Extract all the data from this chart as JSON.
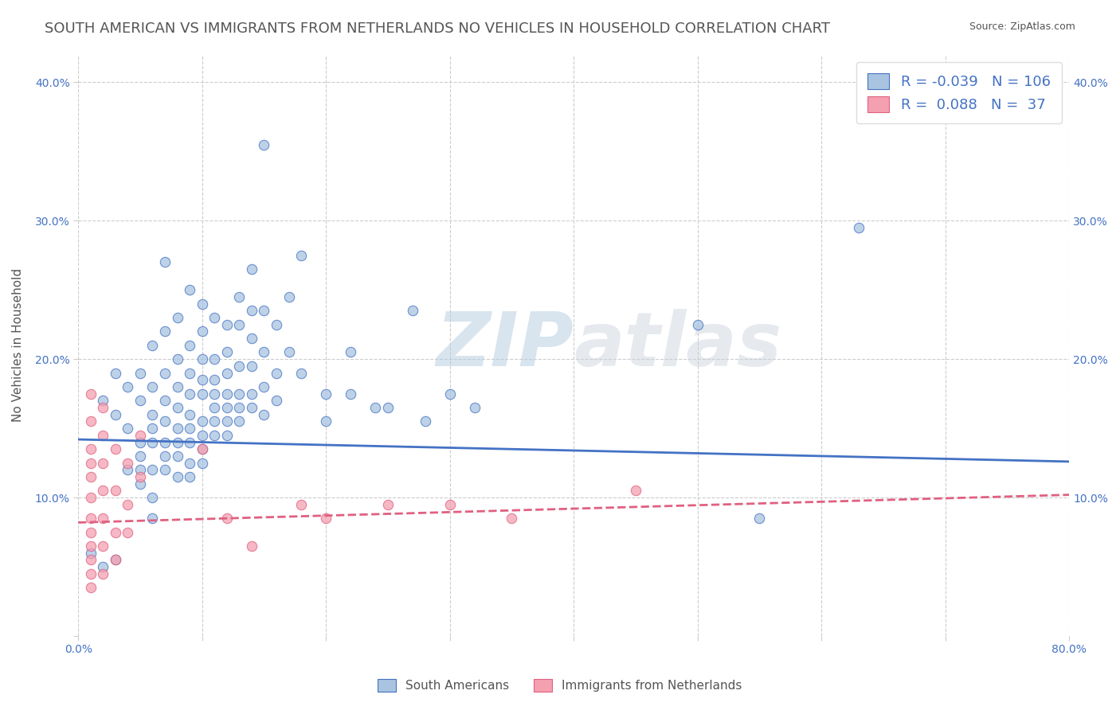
{
  "title": "SOUTH AMERICAN VS IMMIGRANTS FROM NETHERLANDS NO VEHICLES IN HOUSEHOLD CORRELATION CHART",
  "source": "Source: ZipAtlas.com",
  "ylabel": "No Vehicles in Household",
  "xlabel": "",
  "xlim": [
    0.0,
    0.8
  ],
  "ylim": [
    0.0,
    0.42
  ],
  "xticks": [
    0.0,
    0.1,
    0.2,
    0.3,
    0.4,
    0.5,
    0.6,
    0.7,
    0.8
  ],
  "xticklabels": [
    "0.0%",
    "",
    "",
    "",
    "",
    "",
    "",
    "",
    "80.0%"
  ],
  "yticks": [
    0.0,
    0.1,
    0.2,
    0.3,
    0.4
  ],
  "yticklabels_left": [
    "",
    "10.0%",
    "20.0%",
    "30.0%",
    "40.0%"
  ],
  "yticklabels_right": [
    "",
    "10.0%",
    "20.0%",
    "30.0%",
    "40.0%"
  ],
  "r_blue": -0.039,
  "n_blue": 106,
  "r_pink": 0.088,
  "n_pink": 37,
  "blue_color": "#a8c4e0",
  "pink_color": "#f4a0b0",
  "blue_line_color": "#4472c4",
  "pink_line_color": "#e06080",
  "watermark_zip": "ZIP",
  "watermark_atlas": "atlas",
  "blue_scatter": [
    [
      0.02,
      0.17
    ],
    [
      0.03,
      0.16
    ],
    [
      0.03,
      0.19
    ],
    [
      0.04,
      0.18
    ],
    [
      0.04,
      0.15
    ],
    [
      0.04,
      0.12
    ],
    [
      0.05,
      0.19
    ],
    [
      0.05,
      0.17
    ],
    [
      0.05,
      0.14
    ],
    [
      0.05,
      0.12
    ],
    [
      0.05,
      0.11
    ],
    [
      0.05,
      0.13
    ],
    [
      0.06,
      0.21
    ],
    [
      0.06,
      0.18
    ],
    [
      0.06,
      0.16
    ],
    [
      0.06,
      0.15
    ],
    [
      0.06,
      0.14
    ],
    [
      0.06,
      0.12
    ],
    [
      0.06,
      0.1
    ],
    [
      0.06,
      0.085
    ],
    [
      0.07,
      0.27
    ],
    [
      0.07,
      0.22
    ],
    [
      0.07,
      0.19
    ],
    [
      0.07,
      0.17
    ],
    [
      0.07,
      0.155
    ],
    [
      0.07,
      0.14
    ],
    [
      0.07,
      0.13
    ],
    [
      0.07,
      0.12
    ],
    [
      0.08,
      0.23
    ],
    [
      0.08,
      0.2
    ],
    [
      0.08,
      0.18
    ],
    [
      0.08,
      0.165
    ],
    [
      0.08,
      0.15
    ],
    [
      0.08,
      0.14
    ],
    [
      0.08,
      0.13
    ],
    [
      0.08,
      0.115
    ],
    [
      0.09,
      0.25
    ],
    [
      0.09,
      0.21
    ],
    [
      0.09,
      0.19
    ],
    [
      0.09,
      0.175
    ],
    [
      0.09,
      0.16
    ],
    [
      0.09,
      0.15
    ],
    [
      0.09,
      0.14
    ],
    [
      0.09,
      0.125
    ],
    [
      0.09,
      0.115
    ],
    [
      0.1,
      0.24
    ],
    [
      0.1,
      0.22
    ],
    [
      0.1,
      0.2
    ],
    [
      0.1,
      0.185
    ],
    [
      0.1,
      0.175
    ],
    [
      0.1,
      0.155
    ],
    [
      0.1,
      0.145
    ],
    [
      0.1,
      0.135
    ],
    [
      0.1,
      0.125
    ],
    [
      0.11,
      0.23
    ],
    [
      0.11,
      0.2
    ],
    [
      0.11,
      0.185
    ],
    [
      0.11,
      0.175
    ],
    [
      0.11,
      0.165
    ],
    [
      0.11,
      0.155
    ],
    [
      0.11,
      0.145
    ],
    [
      0.12,
      0.225
    ],
    [
      0.12,
      0.205
    ],
    [
      0.12,
      0.19
    ],
    [
      0.12,
      0.175
    ],
    [
      0.12,
      0.165
    ],
    [
      0.12,
      0.155
    ],
    [
      0.12,
      0.145
    ],
    [
      0.13,
      0.245
    ],
    [
      0.13,
      0.225
    ],
    [
      0.13,
      0.195
    ],
    [
      0.13,
      0.175
    ],
    [
      0.13,
      0.165
    ],
    [
      0.13,
      0.155
    ],
    [
      0.14,
      0.265
    ],
    [
      0.14,
      0.235
    ],
    [
      0.14,
      0.215
    ],
    [
      0.14,
      0.195
    ],
    [
      0.14,
      0.175
    ],
    [
      0.14,
      0.165
    ],
    [
      0.15,
      0.355
    ],
    [
      0.15,
      0.235
    ],
    [
      0.15,
      0.205
    ],
    [
      0.15,
      0.18
    ],
    [
      0.15,
      0.16
    ],
    [
      0.16,
      0.225
    ],
    [
      0.16,
      0.19
    ],
    [
      0.16,
      0.17
    ],
    [
      0.17,
      0.245
    ],
    [
      0.17,
      0.205
    ],
    [
      0.18,
      0.275
    ],
    [
      0.18,
      0.19
    ],
    [
      0.2,
      0.175
    ],
    [
      0.2,
      0.155
    ],
    [
      0.22,
      0.205
    ],
    [
      0.22,
      0.175
    ],
    [
      0.24,
      0.165
    ],
    [
      0.25,
      0.165
    ],
    [
      0.27,
      0.235
    ],
    [
      0.28,
      0.155
    ],
    [
      0.3,
      0.175
    ],
    [
      0.32,
      0.165
    ],
    [
      0.5,
      0.225
    ],
    [
      0.55,
      0.085
    ],
    [
      0.63,
      0.295
    ],
    [
      0.01,
      0.06
    ],
    [
      0.02,
      0.05
    ],
    [
      0.03,
      0.055
    ]
  ],
  "pink_scatter": [
    [
      0.01,
      0.175
    ],
    [
      0.01,
      0.155
    ],
    [
      0.01,
      0.135
    ],
    [
      0.01,
      0.125
    ],
    [
      0.01,
      0.115
    ],
    [
      0.01,
      0.1
    ],
    [
      0.01,
      0.085
    ],
    [
      0.01,
      0.075
    ],
    [
      0.01,
      0.065
    ],
    [
      0.01,
      0.055
    ],
    [
      0.01,
      0.045
    ],
    [
      0.01,
      0.035
    ],
    [
      0.02,
      0.165
    ],
    [
      0.02,
      0.145
    ],
    [
      0.02,
      0.125
    ],
    [
      0.02,
      0.105
    ],
    [
      0.02,
      0.085
    ],
    [
      0.02,
      0.065
    ],
    [
      0.02,
      0.045
    ],
    [
      0.03,
      0.135
    ],
    [
      0.03,
      0.105
    ],
    [
      0.03,
      0.075
    ],
    [
      0.03,
      0.055
    ],
    [
      0.04,
      0.125
    ],
    [
      0.04,
      0.095
    ],
    [
      0.04,
      0.075
    ],
    [
      0.05,
      0.145
    ],
    [
      0.05,
      0.115
    ],
    [
      0.1,
      0.135
    ],
    [
      0.12,
      0.085
    ],
    [
      0.14,
      0.065
    ],
    [
      0.18,
      0.095
    ],
    [
      0.2,
      0.085
    ],
    [
      0.25,
      0.095
    ],
    [
      0.3,
      0.095
    ],
    [
      0.35,
      0.085
    ],
    [
      0.45,
      0.105
    ]
  ],
  "blue_intercept": 0.142,
  "blue_slope": -0.02,
  "pink_intercept": 0.082,
  "pink_slope": 0.025,
  "title_fontsize": 13,
  "axis_label_fontsize": 11,
  "tick_fontsize": 10,
  "legend_fontsize": 13,
  "marker_size": 80,
  "background_color": "#ffffff",
  "grid_color": "#cccccc",
  "title_color": "#555555",
  "axis_label_color": "#555555",
  "tick_color": "#4472c4",
  "source_color": "#555555"
}
